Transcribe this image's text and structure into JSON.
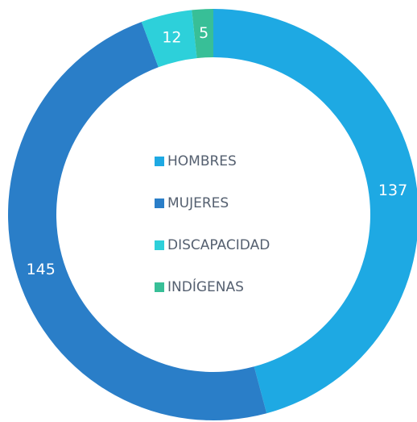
{
  "chart_data": {
    "type": "donut",
    "categories": [
      "HOMBRES",
      "MUJERES",
      "DISCAPACIDAD",
      "INDÍGENAS"
    ],
    "values": [
      137,
      145,
      12,
      5
    ],
    "colors": [
      "#1ea9e3",
      "#2a7ec8",
      "#2dd0da",
      "#38bf97"
    ]
  }
}
